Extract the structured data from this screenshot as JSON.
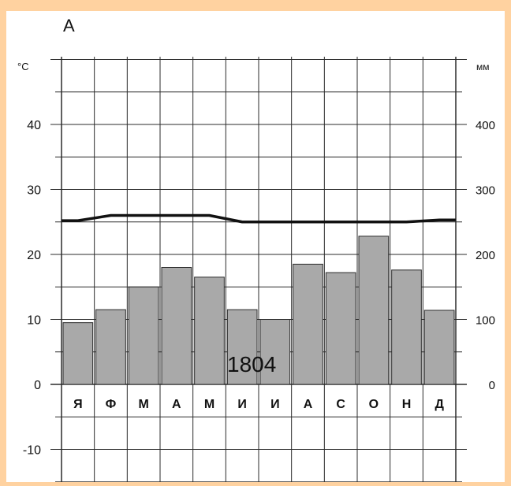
{
  "colors": {
    "frame": "#ffd2a0",
    "paper": "#ffffff",
    "grid": "#2b2b2b",
    "bar": "#a9a9a9",
    "line": "#111111"
  },
  "chart_data": {
    "type": "bar",
    "title": "А",
    "annotation": "1804",
    "categories": [
      "Я",
      "Ф",
      "М",
      "А",
      "М",
      "И",
      "И",
      "А",
      "С",
      "О",
      "Н",
      "Д"
    ],
    "series": [
      {
        "type": "bar",
        "axis": "right",
        "values": [
          95,
          115,
          150,
          180,
          165,
          115,
          100,
          185,
          172,
          228,
          176,
          114
        ]
      },
      {
        "type": "line",
        "axis": "left",
        "values": [
          25.2,
          26.0,
          26.0,
          26.0,
          26.0,
          25.0,
          25.0,
          25.0,
          25.0,
          25.0,
          25.0,
          25.3
        ]
      }
    ],
    "y_left": {
      "unit": "°C",
      "ticks": [
        40,
        30,
        20,
        10,
        0,
        -10
      ],
      "lim": [
        -15,
        50
      ]
    },
    "y_right": {
      "unit": "мм",
      "ticks": [
        400,
        300,
        200,
        100,
        0
      ],
      "lim": [
        -150,
        500
      ]
    },
    "grid": true
  }
}
